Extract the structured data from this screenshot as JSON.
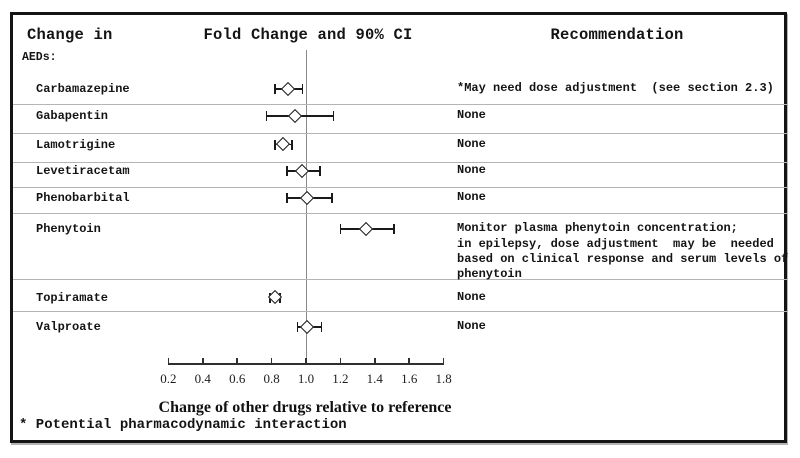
{
  "header": {
    "col_change_in": "Change in",
    "col_fold_change": "Fold Change and 90% CI",
    "col_recommendation": "Recommendation",
    "group_label": "AEDs:"
  },
  "footnote": "* Potential pharmacodynamic interaction",
  "chart_data": {
    "type": "forest",
    "title": "Fold Change and 90% CI",
    "xlabel": "Change of other drugs relative to reference",
    "x_ticks": [
      0.2,
      0.4,
      0.6,
      0.8,
      1.0,
      1.2,
      1.4,
      1.6,
      1.8
    ],
    "xlim": [
      0.2,
      1.8
    ],
    "reference_line": 1.0,
    "ci_level": "90% CI",
    "grid": false,
    "rows": [
      {
        "drug": "Carbamazepine",
        "estimate": 0.9,
        "ci_low": 0.82,
        "ci_high": 0.98,
        "recommendation": "*May need dose adjustment  (see section 2.3)"
      },
      {
        "drug": "Gabapentin",
        "estimate": 0.94,
        "ci_low": 0.77,
        "ci_high": 1.16,
        "recommendation": "None"
      },
      {
        "drug": "Lamotrigine",
        "estimate": 0.87,
        "ci_low": 0.82,
        "ci_high": 0.92,
        "recommendation": "None"
      },
      {
        "drug": "Levetiracetam",
        "estimate": 0.98,
        "ci_low": 0.89,
        "ci_high": 1.08,
        "recommendation": "None"
      },
      {
        "drug": "Phenobarbital",
        "estimate": 1.01,
        "ci_low": 0.89,
        "ci_high": 1.15,
        "recommendation": "None"
      },
      {
        "drug": "Phenytoin",
        "estimate": 1.35,
        "ci_low": 1.2,
        "ci_high": 1.51,
        "recommendation": "Monitor plasma phenytoin concentration;\nin epilepsy, dose adjustment  may be  needed\nbased on clinical response and serum levels of\nphenytoin"
      },
      {
        "drug": "Topiramate",
        "estimate": 0.82,
        "ci_low": 0.79,
        "ci_high": 0.85,
        "recommendation": "None"
      },
      {
        "drug": "Valproate",
        "estimate": 1.01,
        "ci_low": 0.95,
        "ci_high": 1.09,
        "recommendation": "None"
      }
    ]
  }
}
